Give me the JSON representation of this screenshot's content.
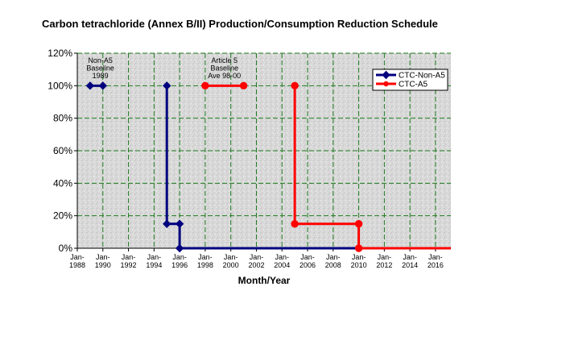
{
  "chart_data": {
    "type": "line",
    "title": "Carbon tetrachloride (Annex B/II) Production/Consumption Reduction Schedule",
    "xlabel": "Month/Year",
    "ylabel": "",
    "xlim": [
      1988,
      2017.2
    ],
    "ylim": [
      0,
      120
    ],
    "y_ticks": [
      0,
      20,
      40,
      60,
      80,
      100,
      120
    ],
    "y_tick_labels": [
      "0%",
      "20%",
      "40%",
      "60%",
      "80%",
      "100%",
      "120%"
    ],
    "x_ticks": [
      {
        "year": 1988,
        "line1": "Jan-",
        "line2": "1988"
      },
      {
        "year": 1990,
        "line1": "Jan-",
        "line2": "1990"
      },
      {
        "year": 1992,
        "line1": "Jan-",
        "line2": "1992"
      },
      {
        "year": 1994,
        "line1": "Jan-",
        "line2": "1994"
      },
      {
        "year": 1996,
        "line1": "Jan-",
        "line2": "1996"
      },
      {
        "year": 1998,
        "line1": "Jan-",
        "line2": "1998"
      },
      {
        "year": 2000,
        "line1": "Jan-",
        "line2": "2000"
      },
      {
        "year": 2002,
        "line1": "Jan-",
        "line2": "2002"
      },
      {
        "year": 2004,
        "line1": "Jan-",
        "line2": "2004"
      },
      {
        "year": 2006,
        "line1": "Jan-",
        "line2": "2006"
      },
      {
        "year": 2008,
        "line1": "Jan-",
        "line2": "2008"
      },
      {
        "year": 2010,
        "line1": "Jan-",
        "line2": "2010"
      },
      {
        "year": 2012,
        "line1": "Jan-",
        "line2": "2012"
      },
      {
        "year": 2014,
        "line1": "Jan-",
        "line2": "2014"
      },
      {
        "year": 2016,
        "line1": "Jan-",
        "line2": "2016"
      }
    ],
    "grid": true,
    "legend_position": "top-right",
    "series": [
      {
        "name": "CTC-Non-A5",
        "color": "#00007f",
        "marker": "diamond",
        "segments": [
          [
            [
              1989.0,
              100
            ],
            [
              1990.0,
              100
            ]
          ],
          [
            [
              1995.0,
              100
            ],
            [
              1995.0,
              15
            ],
            [
              1996.0,
              15
            ],
            [
              1996.0,
              0
            ],
            [
              2017.2,
              0
            ]
          ]
        ],
        "markers": [
          [
            1989.0,
            100
          ],
          [
            1990.0,
            100
          ],
          [
            1995.0,
            100
          ],
          [
            1995.0,
            15
          ],
          [
            1996.0,
            15
          ],
          [
            1996.0,
            0
          ]
        ]
      },
      {
        "name": "CTC-A5",
        "color": "#ff0000",
        "marker": "circle",
        "segments": [
          [
            [
              1998.0,
              100
            ],
            [
              2001.0,
              100
            ]
          ],
          [
            [
              2005.0,
              100
            ],
            [
              2005.0,
              15
            ],
            [
              2010.0,
              15
            ],
            [
              2010.0,
              0
            ],
            [
              2017.2,
              0
            ]
          ]
        ],
        "markers": [
          [
            1998.0,
            100
          ],
          [
            2001.0,
            100
          ],
          [
            2005.0,
            100
          ],
          [
            2005.0,
            15
          ],
          [
            2010.0,
            15
          ],
          [
            2010.0,
            0
          ]
        ]
      }
    ],
    "annotations": [
      {
        "lines": [
          "Non-A5",
          "Baseline",
          "1989"
        ],
        "x": 1989.8,
        "y": 119
      },
      {
        "lines": [
          "Article 5",
          "Baseline",
          "Ave 98-00"
        ],
        "x": 1999.5,
        "y": 119
      }
    ]
  },
  "colors": {
    "plot_background": "#d8d8d8",
    "grid": "#1e7a1e",
    "axis": "#000000",
    "non_a5": "#00007f",
    "a5": "#ff0000"
  }
}
